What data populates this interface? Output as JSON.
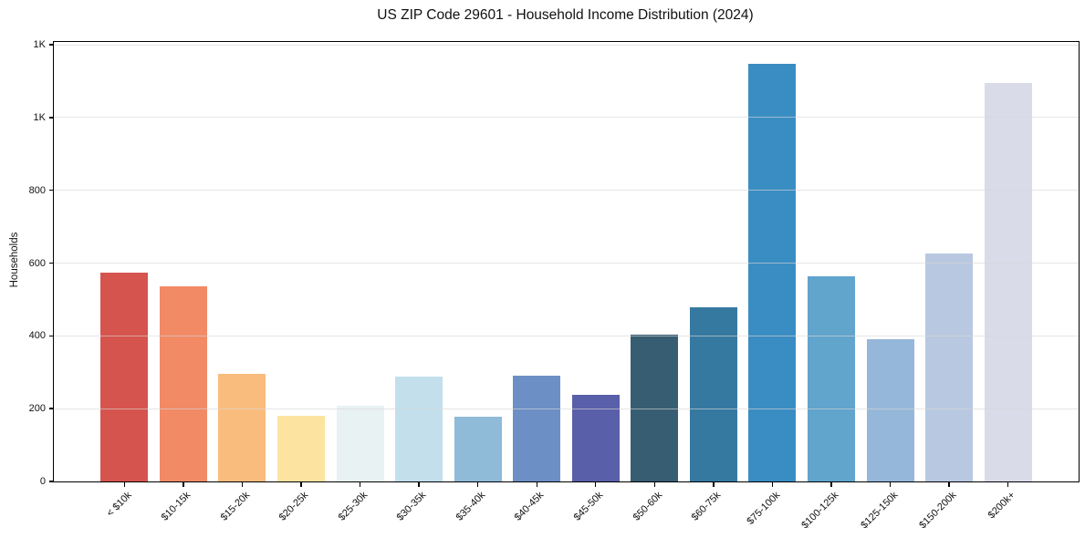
{
  "chart_data": {
    "type": "bar",
    "title": "US ZIP Code 29601 - Household Income Distribution (2024)",
    "xlabel": "",
    "ylabel": "Households",
    "categories": [
      "< $10k",
      "$10-15k",
      "$15-20k",
      "$20-25k",
      "$25-30k",
      "$30-35k",
      "$35-40k",
      "$40-45k",
      "$45-50k",
      "$50-60k",
      "$60-75k",
      "$75-100k",
      "$100-125k",
      "$125-150k",
      "$150-200k",
      "$200k+"
    ],
    "values": [
      575,
      536,
      295,
      180,
      207,
      289,
      179,
      291,
      239,
      404,
      479,
      1149,
      564,
      390,
      626,
      1095
    ],
    "bar_colors": [
      "#d6544e",
      "#f28a66",
      "#fabc7c",
      "#fce3a0",
      "#e9f2f3",
      "#c3dfec",
      "#8fbad8",
      "#6c90c5",
      "#5a5fa9",
      "#375d72",
      "#3679a0",
      "#3a8dc2",
      "#61a4cc",
      "#95b7da",
      "#b8c8e0",
      "#d9dbe9"
    ],
    "yticks": {
      "values": [
        0,
        200,
        400,
        600,
        800,
        1000,
        1200
      ],
      "labels": [
        "0",
        "200",
        "400",
        "600",
        "800",
        "1K",
        "1K"
      ]
    },
    "ylim": [
      0,
      1208
    ],
    "grid": "horizontal",
    "legend": "none",
    "xtick_rotation_deg": 45
  }
}
